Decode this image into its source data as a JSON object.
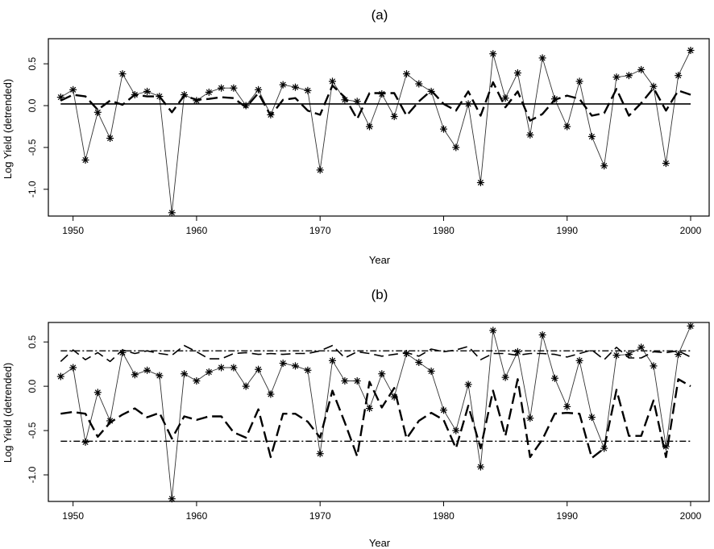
{
  "chart_data": [
    {
      "type": "line",
      "title": "(a)",
      "xlabel": "Year",
      "ylabel": "Log Yield (detrended)",
      "xlim": [
        1948,
        2001.5
      ],
      "ylim": [
        -1.32,
        0.8
      ],
      "xticks": [
        "1950",
        "1960",
        "1970",
        "1980",
        "1990",
        "2000"
      ],
      "yticks": [
        "0.5",
        "0.0",
        "-0.5",
        "-1.0"
      ],
      "grid": false,
      "series": [
        {
          "style": "thin-solid-with-star-markers",
          "x": [
            1949,
            1950,
            1951,
            1952,
            1953,
            1954,
            1955,
            1956,
            1957,
            1958,
            1959,
            1960,
            1961,
            1962,
            1963,
            1964,
            1965,
            1966,
            1967,
            1968,
            1969,
            1970,
            1971,
            1972,
            1973,
            1974,
            1975,
            1976,
            1977,
            1978,
            1979,
            1980,
            1981,
            1982,
            1983,
            1984,
            1985,
            1986,
            1987,
            1988,
            1989,
            1990,
            1991,
            1992,
            1993,
            1994,
            1995,
            1996,
            1997,
            1998,
            1999,
            2000
          ],
          "values": [
            0.1,
            0.19,
            -0.65,
            -0.08,
            -0.39,
            0.38,
            0.13,
            0.17,
            0.11,
            -1.28,
            0.13,
            0.06,
            0.16,
            0.21,
            0.21,
            0.0,
            0.19,
            -0.11,
            0.25,
            0.22,
            0.18,
            -0.77,
            0.29,
            0.07,
            0.05,
            -0.25,
            0.14,
            -0.13,
            0.38,
            0.26,
            0.17,
            -0.28,
            -0.5,
            0.02,
            -0.92,
            0.62,
            0.09,
            0.39,
            -0.35,
            0.57,
            0.08,
            -0.25,
            0.29,
            -0.37,
            -0.72,
            0.34,
            0.36,
            0.43,
            0.23,
            -0.69,
            0.36,
            0.66
          ]
        },
        {
          "style": "thick-dashed",
          "x": [
            1949,
            1950,
            1951,
            1952,
            1953,
            1954,
            1955,
            1956,
            1957,
            1958,
            1959,
            1960,
            1961,
            1962,
            1963,
            1964,
            1965,
            1966,
            1967,
            1968,
            1969,
            1970,
            1971,
            1972,
            1973,
            1974,
            1975,
            1976,
            1977,
            1978,
            1979,
            1980,
            1981,
            1982,
            1983,
            1984,
            1985,
            1986,
            1987,
            1988,
            1989,
            1990,
            1991,
            1992,
            1993,
            1994,
            1995,
            1996,
            1997,
            1998,
            1999,
            2000
          ],
          "values": [
            0.06,
            0.13,
            0.11,
            -0.05,
            0.06,
            0.01,
            0.13,
            0.11,
            0.11,
            -0.08,
            0.12,
            0.07,
            0.08,
            0.1,
            0.09,
            -0.02,
            0.15,
            -0.12,
            0.07,
            0.09,
            -0.06,
            -0.11,
            0.24,
            0.1,
            -0.16,
            0.15,
            0.15,
            0.15,
            -0.12,
            0.05,
            0.18,
            0.02,
            -0.06,
            0.17,
            -0.12,
            0.28,
            -0.02,
            0.17,
            -0.18,
            -0.1,
            0.07,
            0.12,
            0.08,
            -0.12,
            -0.09,
            0.2,
            -0.12,
            0.03,
            0.21,
            -0.06,
            0.18,
            0.13
          ]
        },
        {
          "style": "thick-solid-horizontal",
          "x": [
            1949,
            2000
          ],
          "values": [
            0.02,
            0.02
          ]
        }
      ]
    },
    {
      "type": "line",
      "title": "(b)",
      "xlabel": "Year",
      "ylabel": "Log Yield (detrended)",
      "xlim": [
        1948,
        2001.5
      ],
      "ylim": [
        -1.3,
        0.72
      ],
      "xticks": [
        "1950",
        "1960",
        "1970",
        "1980",
        "1990",
        "2000"
      ],
      "yticks": [
        "0.5",
        "0.0",
        "-0.5",
        "-1.0"
      ],
      "grid": false,
      "series": [
        {
          "style": "thin-solid-with-star-markers",
          "x": [
            1949,
            1950,
            1951,
            1952,
            1953,
            1954,
            1955,
            1956,
            1957,
            1958,
            1959,
            1960,
            1961,
            1962,
            1963,
            1964,
            1965,
            1966,
            1967,
            1968,
            1969,
            1970,
            1971,
            1972,
            1973,
            1974,
            1975,
            1976,
            1977,
            1978,
            1979,
            1980,
            1981,
            1982,
            1983,
            1984,
            1985,
            1986,
            1987,
            1988,
            1989,
            1990,
            1991,
            1992,
            1993,
            1994,
            1995,
            1996,
            1997,
            1998,
            1999,
            2000
          ],
          "values": [
            0.11,
            0.21,
            -0.63,
            -0.07,
            -0.39,
            0.38,
            0.13,
            0.18,
            0.12,
            -1.27,
            0.14,
            0.06,
            0.16,
            0.21,
            0.21,
            0.0,
            0.19,
            -0.09,
            0.26,
            0.23,
            0.18,
            -0.76,
            0.29,
            0.06,
            0.06,
            -0.25,
            0.14,
            -0.12,
            0.37,
            0.27,
            0.17,
            -0.27,
            -0.5,
            0.02,
            -0.91,
            0.63,
            0.1,
            0.39,
            -0.36,
            0.58,
            0.09,
            -0.23,
            0.29,
            -0.35,
            -0.7,
            0.35,
            0.36,
            0.44,
            0.23,
            -0.68,
            0.36,
            0.68
          ]
        },
        {
          "style": "thick-dashed-upper",
          "x": [
            1949,
            1950,
            1951,
            1952,
            1953,
            1954,
            1955,
            1956,
            1957,
            1958,
            1959,
            1960,
            1961,
            1962,
            1963,
            1964,
            1965,
            1966,
            1967,
            1968,
            1969,
            1970,
            1971,
            1972,
            1973,
            1974,
            1975,
            1976,
            1977,
            1978,
            1979,
            1980,
            1981,
            1982,
            1983,
            1984,
            1985,
            1986,
            1987,
            1988,
            1989,
            1990,
            1991,
            1992,
            1993,
            1994,
            1995,
            1996,
            1997,
            1998,
            1999,
            2000
          ],
          "values": [
            0.28,
            0.41,
            0.3,
            0.38,
            0.28,
            0.41,
            0.37,
            0.4,
            0.37,
            0.35,
            0.46,
            0.39,
            0.31,
            0.31,
            0.37,
            0.38,
            0.36,
            0.37,
            0.36,
            0.37,
            0.37,
            0.4,
            0.46,
            0.32,
            0.39,
            0.37,
            0.34,
            0.36,
            0.38,
            0.34,
            0.42,
            0.39,
            0.41,
            0.45,
            0.3,
            0.37,
            0.37,
            0.35,
            0.37,
            0.37,
            0.36,
            0.33,
            0.37,
            0.41,
            0.3,
            0.44,
            0.32,
            0.32,
            0.39,
            0.38,
            0.4,
            0.33
          ]
        },
        {
          "style": "thick-dashed-lower",
          "x": [
            1949,
            1950,
            1951,
            1952,
            1953,
            1954,
            1955,
            1956,
            1957,
            1958,
            1959,
            1960,
            1961,
            1962,
            1963,
            1964,
            1965,
            1966,
            1967,
            1968,
            1969,
            1970,
            1971,
            1972,
            1973,
            1974,
            1975,
            1976,
            1977,
            1978,
            1979,
            1980,
            1981,
            1982,
            1983,
            1984,
            1985,
            1986,
            1987,
            1988,
            1989,
            1990,
            1991,
            1992,
            1993,
            1994,
            1995,
            1996,
            1997,
            1998,
            1999,
            2000
          ],
          "values": [
            -0.31,
            -0.29,
            -0.31,
            -0.57,
            -0.41,
            -0.32,
            -0.25,
            -0.35,
            -0.3,
            -0.59,
            -0.34,
            -0.38,
            -0.34,
            -0.34,
            -0.52,
            -0.58,
            -0.26,
            -0.8,
            -0.31,
            -0.31,
            -0.4,
            -0.58,
            -0.05,
            -0.41,
            -0.79,
            0.05,
            -0.24,
            -0.02,
            -0.59,
            -0.39,
            -0.3,
            -0.38,
            -0.7,
            -0.22,
            -0.7,
            -0.05,
            -0.56,
            0.08,
            -0.8,
            -0.6,
            -0.31,
            -0.3,
            -0.31,
            -0.81,
            -0.7,
            -0.04,
            -0.56,
            -0.56,
            -0.16,
            -0.8,
            0.08,
            0.0
          ]
        },
        {
          "style": "dash-dot-horizontal-upper",
          "x": [
            1949,
            2000
          ],
          "values": [
            0.4,
            0.4
          ]
        },
        {
          "style": "dash-dot-horizontal-lower",
          "x": [
            1949,
            2000
          ],
          "values": [
            -0.62,
            -0.62
          ]
        }
      ]
    }
  ]
}
